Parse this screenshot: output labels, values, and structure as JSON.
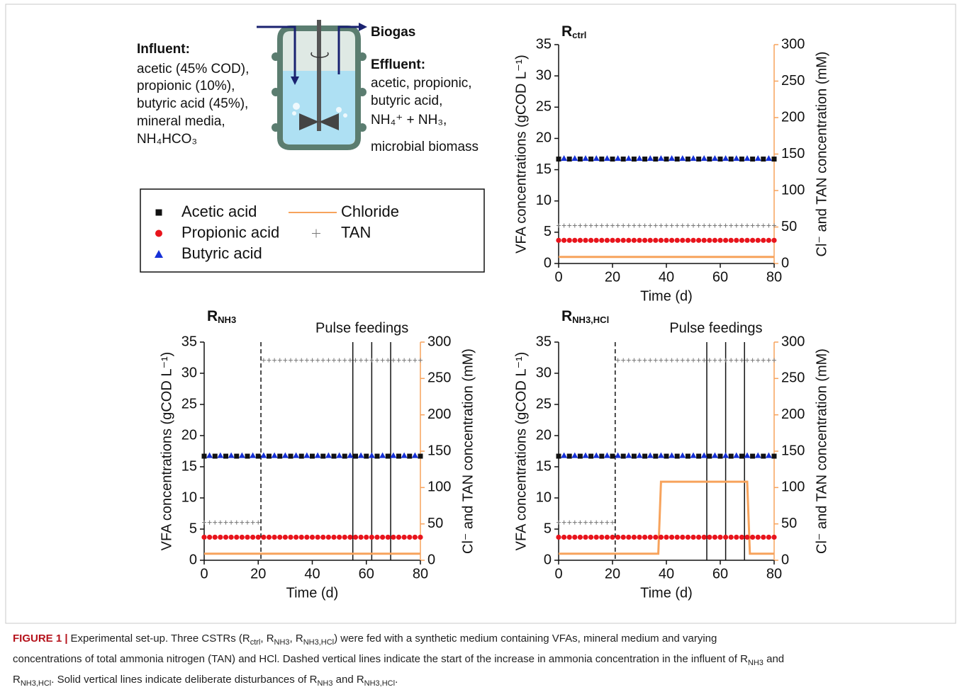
{
  "diagram": {
    "influent_title": "Influent:",
    "influent_lines": [
      "acetic (45% COD),",
      "propionic (10%),",
      "butyric acid (45%),",
      "mineral media,",
      "NH₄HCO₃"
    ],
    "biogas": "Biogas",
    "effluent_title": "Effluent:",
    "effluent_lines": [
      "acetic, propionic,",
      "butyric acid,",
      "NH₄⁺ + NH₃,",
      "microbial biomass"
    ]
  },
  "chart_data": [
    {
      "type": "scatter",
      "title": "R",
      "title_sub": "ctrl",
      "x_label": "Time (d)",
      "y_label": "VFA concentrations (gCOD L⁻¹)",
      "y2_label": "Cl⁻ and TAN concentration (mM)",
      "y2_color": "#f7a35c",
      "xlim": [
        0,
        80
      ],
      "xticks": [
        0,
        20,
        40,
        60,
        80
      ],
      "ylim": [
        0,
        35
      ],
      "yticks": [
        0,
        5,
        10,
        15,
        20,
        25,
        30,
        35
      ],
      "y2lim": [
        0,
        300
      ],
      "y2ticks": [
        0,
        50,
        100,
        150,
        200,
        250,
        300
      ],
      "series": [
        {
          "name": "Acetic acid",
          "color": "#111111",
          "marker": "square",
          "x": [
            0,
            4,
            8,
            12,
            16,
            20,
            24,
            28,
            32,
            36,
            40,
            44,
            48,
            52,
            56,
            60,
            64,
            68,
            72,
            76,
            80
          ],
          "values": [
            16.7,
            16.7,
            16.7,
            16.7,
            16.7,
            16.7,
            16.7,
            16.7,
            16.7,
            16.7,
            16.7,
            16.7,
            16.7,
            16.7,
            16.7,
            16.7,
            16.7,
            16.7,
            16.7,
            16.7,
            16.7
          ]
        },
        {
          "name": "Propionic acid",
          "color": "#e8141c",
          "marker": "circle",
          "x": [
            0,
            2,
            4,
            6,
            8,
            10,
            12,
            14,
            16,
            18,
            20,
            22,
            24,
            26,
            28,
            30,
            32,
            34,
            36,
            38,
            40,
            42,
            44,
            46,
            48,
            50,
            52,
            54,
            56,
            58,
            60,
            62,
            64,
            66,
            68,
            70,
            72,
            74,
            76,
            78,
            80
          ],
          "values": [
            3.7,
            3.7,
            3.7,
            3.7,
            3.7,
            3.7,
            3.7,
            3.7,
            3.7,
            3.7,
            3.7,
            3.7,
            3.7,
            3.7,
            3.7,
            3.7,
            3.7,
            3.7,
            3.7,
            3.7,
            3.7,
            3.7,
            3.7,
            3.7,
            3.7,
            3.7,
            3.7,
            3.7,
            3.7,
            3.7,
            3.7,
            3.7,
            3.7,
            3.7,
            3.7,
            3.7,
            3.7,
            3.7,
            3.7,
            3.7,
            3.7
          ]
        },
        {
          "name": "Butyric acid",
          "color": "#1631d8",
          "marker": "triangle",
          "x": [
            2,
            6,
            10,
            14,
            18,
            22,
            26,
            30,
            34,
            38,
            42,
            46,
            50,
            54,
            58,
            62,
            66,
            70,
            74,
            78
          ],
          "values": [
            16.8,
            16.8,
            16.8,
            16.8,
            16.8,
            16.8,
            16.8,
            16.8,
            16.8,
            16.8,
            16.8,
            16.8,
            16.8,
            16.8,
            16.8,
            16.8,
            16.8,
            16.8,
            16.8,
            16.8
          ]
        },
        {
          "name": "Chloride",
          "color": "#f7a35c",
          "marker": "line",
          "axis": "y2",
          "x": [
            0,
            80
          ],
          "values": [
            9,
            9
          ]
        },
        {
          "name": "TAN",
          "color": "#777777",
          "marker": "plus",
          "axis": "y2",
          "x": [
            0,
            2,
            4,
            6,
            8,
            10,
            12,
            14,
            16,
            18,
            20,
            22,
            24,
            26,
            28,
            30,
            32,
            34,
            36,
            38,
            40,
            42,
            44,
            46,
            48,
            50,
            52,
            54,
            56,
            58,
            60,
            62,
            64,
            66,
            68,
            70,
            72,
            74,
            76,
            78,
            80
          ],
          "values": [
            52,
            52,
            52,
            52,
            52,
            52,
            52,
            52,
            52,
            52,
            52,
            52,
            52,
            52,
            52,
            52,
            52,
            52,
            52,
            52,
            52,
            52,
            52,
            52,
            52,
            52,
            52,
            52,
            52,
            52,
            52,
            52,
            52,
            52,
            52,
            52,
            52,
            52,
            52,
            52,
            52
          ]
        }
      ]
    },
    {
      "type": "scatter",
      "title": "R",
      "title_sub": "NH3",
      "annotation": "Pulse feedings",
      "x_label": "Time (d)",
      "y_label": "VFA concentrations (gCOD L⁻¹)",
      "y2_label": "Cl⁻ and TAN concentration (mM)",
      "y2_color": "#f7a35c",
      "xlim": [
        0,
        80
      ],
      "xticks": [
        0,
        20,
        40,
        60,
        80
      ],
      "ylim": [
        0,
        35
      ],
      "yticks": [
        0,
        5,
        10,
        15,
        20,
        25,
        30,
        35
      ],
      "y2lim": [
        0,
        300
      ],
      "y2ticks": [
        0,
        50,
        100,
        150,
        200,
        250,
        300
      ],
      "dashed_lines": [
        21
      ],
      "solid_lines": [
        55,
        62,
        69
      ],
      "series": [
        {
          "color": "#111111",
          "marker": "square",
          "x": [
            0,
            4,
            8,
            12,
            16,
            20,
            24,
            28,
            32,
            36,
            40,
            44,
            48,
            52,
            56,
            60,
            64,
            68,
            72,
            76,
            80
          ],
          "values": [
            16.7,
            16.7,
            16.7,
            16.7,
            16.7,
            16.7,
            16.7,
            16.7,
            16.7,
            16.7,
            16.7,
            16.7,
            16.7,
            16.7,
            16.7,
            16.7,
            16.7,
            16.7,
            16.7,
            16.7,
            16.7
          ]
        },
        {
          "color": "#e8141c",
          "marker": "circle",
          "x": [
            0,
            2,
            4,
            6,
            8,
            10,
            12,
            14,
            16,
            18,
            20,
            22,
            24,
            26,
            28,
            30,
            32,
            34,
            36,
            38,
            40,
            42,
            44,
            46,
            48,
            50,
            52,
            54,
            56,
            58,
            60,
            62,
            64,
            66,
            68,
            70,
            72,
            74,
            76,
            78,
            80
          ],
          "values": [
            3.7,
            3.7,
            3.7,
            3.7,
            3.7,
            3.7,
            3.7,
            3.7,
            3.7,
            3.7,
            3.7,
            3.7,
            3.7,
            3.7,
            3.7,
            3.7,
            3.7,
            3.7,
            3.7,
            3.7,
            3.7,
            3.7,
            3.7,
            3.7,
            3.7,
            3.7,
            3.7,
            3.7,
            3.7,
            3.7,
            3.7,
            3.7,
            3.7,
            3.7,
            3.7,
            3.7,
            3.7,
            3.7,
            3.7,
            3.7,
            3.7
          ]
        },
        {
          "color": "#1631d8",
          "marker": "triangle",
          "x": [
            2,
            6,
            10,
            14,
            18,
            22,
            26,
            30,
            34,
            38,
            42,
            46,
            50,
            54,
            58,
            62,
            66,
            70,
            74,
            78
          ],
          "values": [
            16.8,
            16.8,
            16.8,
            16.8,
            16.8,
            16.8,
            16.8,
            16.8,
            16.8,
            16.8,
            16.8,
            16.8,
            16.8,
            16.8,
            16.8,
            16.8,
            16.8,
            16.8,
            16.8,
            16.8
          ]
        },
        {
          "color": "#f7a35c",
          "marker": "line",
          "axis": "y2",
          "x": [
            0,
            80
          ],
          "values": [
            9,
            9
          ]
        },
        {
          "color": "#777777",
          "marker": "plus",
          "axis": "y2",
          "x": [
            0,
            2,
            4,
            6,
            8,
            10,
            12,
            14,
            16,
            18,
            20,
            22,
            24,
            26,
            28,
            30,
            32,
            34,
            36,
            38,
            40,
            42,
            44,
            46,
            48,
            50,
            52,
            54,
            56,
            58,
            60,
            62,
            64,
            66,
            68,
            70,
            72,
            74,
            76,
            78,
            80
          ],
          "values": [
            52,
            52,
            52,
            52,
            52,
            52,
            52,
            52,
            52,
            52,
            52,
            275,
            275,
            275,
            275,
            275,
            275,
            275,
            275,
            275,
            275,
            275,
            275,
            275,
            275,
            275,
            275,
            275,
            275,
            275,
            275,
            275,
            275,
            275,
            275,
            275,
            275,
            275,
            275,
            275,
            275
          ]
        }
      ]
    },
    {
      "type": "scatter",
      "title": "R",
      "title_sub": "NH3,HCl",
      "annotation": "Pulse feedings",
      "x_label": "Time (d)",
      "y_label": "VFA concentrations (gCOD L⁻¹)",
      "y2_label": "Cl⁻ and TAN concentration (mM)",
      "y2_color": "#f7a35c",
      "xlim": [
        0,
        80
      ],
      "xticks": [
        0,
        20,
        40,
        60,
        80
      ],
      "ylim": [
        0,
        35
      ],
      "yticks": [
        0,
        5,
        10,
        15,
        20,
        25,
        30,
        35
      ],
      "y2lim": [
        0,
        300
      ],
      "y2ticks": [
        0,
        50,
        100,
        150,
        200,
        250,
        300
      ],
      "dashed_lines": [
        21
      ],
      "solid_lines": [
        55,
        62,
        69
      ],
      "series": [
        {
          "color": "#111111",
          "marker": "square",
          "x": [
            0,
            4,
            8,
            12,
            16,
            20,
            24,
            28,
            32,
            36,
            40,
            44,
            48,
            52,
            56,
            60,
            64,
            68,
            72,
            76,
            80
          ],
          "values": [
            16.7,
            16.7,
            16.7,
            16.7,
            16.7,
            16.7,
            16.7,
            16.7,
            16.7,
            16.7,
            16.7,
            16.7,
            16.7,
            16.7,
            16.7,
            16.7,
            16.7,
            16.7,
            16.7,
            16.7,
            16.7
          ]
        },
        {
          "color": "#e8141c",
          "marker": "circle",
          "x": [
            0,
            2,
            4,
            6,
            8,
            10,
            12,
            14,
            16,
            18,
            20,
            22,
            24,
            26,
            28,
            30,
            32,
            34,
            36,
            38,
            40,
            42,
            44,
            46,
            48,
            50,
            52,
            54,
            56,
            58,
            60,
            62,
            64,
            66,
            68,
            70,
            72,
            74,
            76,
            78,
            80
          ],
          "values": [
            3.7,
            3.7,
            3.7,
            3.7,
            3.7,
            3.7,
            3.7,
            3.7,
            3.7,
            3.7,
            3.7,
            3.7,
            3.7,
            3.7,
            3.7,
            3.7,
            3.7,
            3.7,
            3.7,
            3.7,
            3.7,
            3.7,
            3.7,
            3.7,
            3.7,
            3.7,
            3.7,
            3.7,
            3.7,
            3.7,
            3.7,
            3.7,
            3.7,
            3.7,
            3.7,
            3.7,
            3.7,
            3.7,
            3.7,
            3.7,
            3.7
          ]
        },
        {
          "color": "#1631d8",
          "marker": "triangle",
          "x": [
            2,
            6,
            10,
            14,
            18,
            22,
            26,
            30,
            34,
            38,
            42,
            46,
            50,
            54,
            58,
            62,
            66,
            70,
            74,
            78
          ],
          "values": [
            16.8,
            16.8,
            16.8,
            16.8,
            16.8,
            16.8,
            16.8,
            16.8,
            16.8,
            16.8,
            16.8,
            16.8,
            16.8,
            16.8,
            16.8,
            16.8,
            16.8,
            16.8,
            16.8,
            16.8
          ]
        },
        {
          "color": "#f7a35c",
          "marker": "line",
          "axis": "y2",
          "x": [
            0,
            37,
            38,
            70,
            71,
            80
          ],
          "values": [
            9,
            9,
            108,
            108,
            9,
            9
          ]
        },
        {
          "color": "#777777",
          "marker": "plus",
          "axis": "y2",
          "x": [
            0,
            2,
            4,
            6,
            8,
            10,
            12,
            14,
            16,
            18,
            20,
            22,
            24,
            26,
            28,
            30,
            32,
            34,
            36,
            38,
            40,
            42,
            44,
            46,
            48,
            50,
            52,
            54,
            56,
            58,
            60,
            62,
            64,
            66,
            68,
            70,
            72,
            74,
            76,
            78,
            80
          ],
          "values": [
            52,
            52,
            52,
            52,
            52,
            52,
            52,
            52,
            52,
            52,
            52,
            275,
            275,
            275,
            275,
            275,
            275,
            275,
            275,
            275,
            275,
            275,
            275,
            275,
            275,
            275,
            275,
            275,
            275,
            275,
            275,
            275,
            275,
            275,
            275,
            275,
            275,
            275,
            275,
            275,
            275
          ]
        }
      ]
    }
  ],
  "caption": {
    "label": "FIGURE 1 |",
    "lines": [
      [
        "Experimental set-up. Three CSTRs (R",
        {
          "sub": "ctrl"
        },
        ", R",
        {
          "sub": "NH3"
        },
        ", R",
        {
          "sub": "NH3,HCl"
        },
        ") were fed with a synthetic medium containing VFAs, mineral medium and varying"
      ],
      [
        "concentrations of total ammonia nitrogen (TAN) and HCl. Dashed vertical lines indicate the start of the increase in ammonia concentration in the influent of R",
        {
          "sub": "NH3"
        },
        " and"
      ],
      [
        "R",
        {
          "sub": "NH3,HCl"
        },
        ". Solid vertical lines indicate deliberate disturbances of R",
        {
          "sub": "NH3"
        },
        " and R",
        {
          "sub": "NH3,HCl"
        },
        "."
      ]
    ]
  }
}
